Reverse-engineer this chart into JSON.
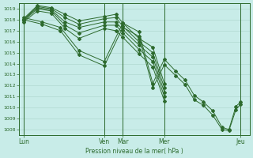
{
  "background_color": "#c8ece8",
  "grid_color": "#b0d8d0",
  "line_color": "#2d6a2d",
  "ylabel_text": "Pression niveau de la mer( hPa )",
  "ylim": [
    1007.5,
    1019.5
  ],
  "yticks": [
    1008,
    1009,
    1010,
    1011,
    1012,
    1013,
    1014,
    1015,
    1016,
    1017,
    1018,
    1019
  ],
  "day_labels": [
    "Lun",
    "Ven",
    "Mar",
    "Mer",
    "Jeu"
  ],
  "xlim": [
    0,
    100
  ],
  "day_x": [
    2,
    37,
    45,
    63,
    96
  ],
  "vline_x": [
    2,
    37,
    45,
    63,
    96
  ],
  "short_series": [
    {
      "x": [
        2,
        8,
        14,
        20,
        26,
        37,
        42,
        45,
        52,
        58,
        63
      ],
      "y": [
        1018.1,
        1019.3,
        1019.1,
        1018.5,
        1017.9,
        1018.3,
        1018.5,
        1017.7,
        1016.3,
        1015.5,
        1012.2
      ]
    },
    {
      "x": [
        2,
        8,
        14,
        20,
        26,
        37,
        42,
        45,
        52,
        58,
        63
      ],
      "y": [
        1018.0,
        1019.2,
        1019.0,
        1018.2,
        1017.6,
        1018.1,
        1018.2,
        1017.4,
        1016.0,
        1015.0,
        1011.8
      ]
    },
    {
      "x": [
        2,
        8,
        14,
        20,
        26,
        37,
        42,
        45,
        52,
        58,
        63
      ],
      "y": [
        1018.0,
        1019.1,
        1018.9,
        1017.8,
        1017.3,
        1017.8,
        1017.8,
        1017.1,
        1015.7,
        1014.6,
        1011.4
      ]
    },
    {
      "x": [
        2,
        8,
        14,
        20,
        26,
        37,
        42,
        45,
        52,
        58,
        63
      ],
      "y": [
        1017.9,
        1019.0,
        1018.8,
        1017.5,
        1016.8,
        1017.5,
        1017.5,
        1016.8,
        1015.3,
        1014.2,
        1011.0
      ]
    },
    {
      "x": [
        2,
        8,
        14,
        20,
        26,
        37,
        42,
        45,
        52,
        58,
        63
      ],
      "y": [
        1017.8,
        1018.8,
        1018.6,
        1017.2,
        1016.3,
        1017.2,
        1017.0,
        1016.4,
        1014.9,
        1013.7,
        1010.6
      ]
    }
  ],
  "long_series": [
    {
      "x": [
        2,
        10,
        18,
        26,
        37,
        45,
        52,
        58,
        63,
        68,
        72,
        76,
        80,
        84,
        88,
        91,
        94,
        96
      ],
      "y": [
        1018.2,
        1017.8,
        1017.3,
        1015.2,
        1014.2,
        1017.7,
        1016.9,
        1012.2,
        1014.4,
        1013.3,
        1012.5,
        1011.1,
        1010.5,
        1009.7,
        1008.2,
        1008.0,
        1010.1,
        1010.5
      ]
    },
    {
      "x": [
        2,
        10,
        18,
        26,
        37,
        45,
        52,
        58,
        63,
        68,
        72,
        76,
        80,
        84,
        88,
        91,
        94,
        96
      ],
      "y": [
        1018.0,
        1017.6,
        1017.0,
        1014.8,
        1013.8,
        1017.3,
        1016.5,
        1011.8,
        1013.9,
        1012.9,
        1012.1,
        1010.7,
        1010.2,
        1009.3,
        1008.0,
        1007.9,
        1009.8,
        1010.3
      ]
    }
  ]
}
